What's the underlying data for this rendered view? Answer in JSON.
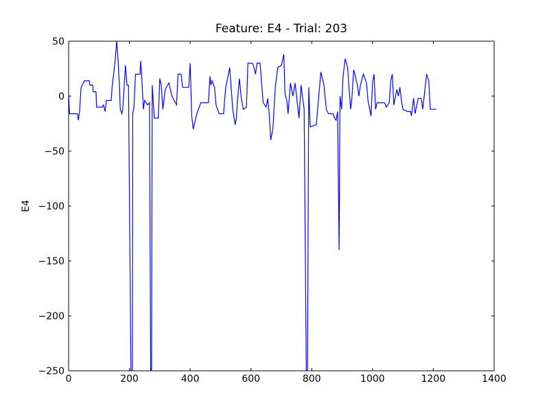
{
  "chart_data": {
    "type": "line",
    "title": "Feature: E4 - Trial: 203",
    "y_label": "E4",
    "x": [
      0,
      3,
      29,
      32,
      36,
      41,
      45,
      52,
      68,
      70,
      79,
      81,
      90,
      92,
      110,
      115,
      120,
      124,
      140,
      143,
      148,
      153,
      158,
      162,
      167,
      170,
      175,
      178,
      183,
      187,
      192,
      197,
      205,
      210,
      211,
      215,
      220,
      235,
      237,
      240,
      246,
      250,
      260,
      266,
      270,
      273,
      275,
      282,
      295,
      300,
      305,
      310,
      318,
      325,
      330,
      340,
      355,
      360,
      370,
      375,
      395,
      400,
      405,
      410,
      415,
      422,
      435,
      460,
      465,
      468,
      472,
      480,
      485,
      495,
      510,
      512,
      517,
      530,
      540,
      548,
      552,
      555,
      562,
      568,
      575,
      585,
      590,
      605,
      610,
      615,
      620,
      630,
      640,
      650,
      655,
      660,
      665,
      672,
      680,
      688,
      700,
      708,
      712,
      718,
      722,
      730,
      738,
      745,
      758,
      765,
      770,
      775,
      782,
      786,
      790,
      795,
      815,
      830,
      840,
      848,
      855,
      870,
      875,
      880,
      885,
      890,
      893,
      898,
      903,
      910,
      918,
      922,
      928,
      932,
      938,
      942,
      950,
      955,
      960,
      970,
      980,
      985,
      995,
      1000,
      1005,
      1010,
      1015,
      1040,
      1045,
      1055,
      1060,
      1065,
      1070,
      1080,
      1085,
      1090,
      1095,
      1100,
      1115,
      1125,
      1128,
      1135,
      1140,
      1150,
      1160,
      1165,
      1170,
      1178,
      1185,
      1190,
      1210
    ],
    "series": [
      {
        "name": "E4",
        "color": "#0000ff",
        "values": [
          2,
          -16,
          -16,
          -22,
          -14,
          8,
          10,
          14,
          14,
          10,
          10,
          4,
          4,
          -10,
          -10,
          -8,
          -14,
          -4,
          -4,
          8,
          20,
          32,
          50,
          36,
          10,
          -12,
          -16,
          -12,
          10,
          28,
          10,
          10,
          -250,
          -250,
          -16,
          -10,
          20,
          20,
          32,
          20,
          -12,
          -4,
          -8,
          -6,
          -250,
          -250,
          10,
          -20,
          -20,
          16,
          10,
          -12,
          6,
          10,
          12,
          0,
          -8,
          20,
          20,
          8,
          8,
          30,
          -18,
          -30,
          -24,
          -16,
          -6,
          -6,
          18,
          10,
          14,
          8,
          -8,
          -16,
          -16,
          -8,
          8,
          26,
          -12,
          -26,
          -20,
          -6,
          16,
          -2,
          -12,
          -10,
          30,
          30,
          26,
          20,
          30,
          30,
          -6,
          -10,
          -2,
          -16,
          -40,
          -30,
          8,
          26,
          28,
          38,
          2,
          -4,
          -16,
          12,
          0,
          12,
          -20,
          10,
          -2,
          -12,
          -250,
          -250,
          8,
          -28,
          -26,
          22,
          10,
          -12,
          -16,
          -16,
          -20,
          -22,
          -14,
          -140,
          0,
          -12,
          18,
          34,
          26,
          10,
          -12,
          -2,
          24,
          20,
          10,
          0,
          10,
          20,
          12,
          -4,
          -18,
          12,
          20,
          -12,
          -6,
          -6,
          -10,
          -6,
          14,
          20,
          -8,
          6,
          0,
          8,
          -4,
          -12,
          -14,
          -14,
          -18,
          -2,
          -16,
          -2,
          -2,
          -12,
          0,
          20,
          14,
          -12,
          -12
        ]
      }
    ],
    "xlim": [
      0,
      1400
    ],
    "xticks": [
      0,
      200,
      400,
      600,
      800,
      1000,
      1200,
      1400
    ],
    "ylim": [
      -250,
      50
    ],
    "yticks": [
      {
        "value": -250,
        "label": "−250"
      },
      {
        "value": -200,
        "label": "−200"
      },
      {
        "value": -150,
        "label": "−150"
      },
      {
        "value": -100,
        "label": "−100"
      },
      {
        "value": -50,
        "label": "−50"
      },
      0,
      50
    ],
    "grid": false
  }
}
